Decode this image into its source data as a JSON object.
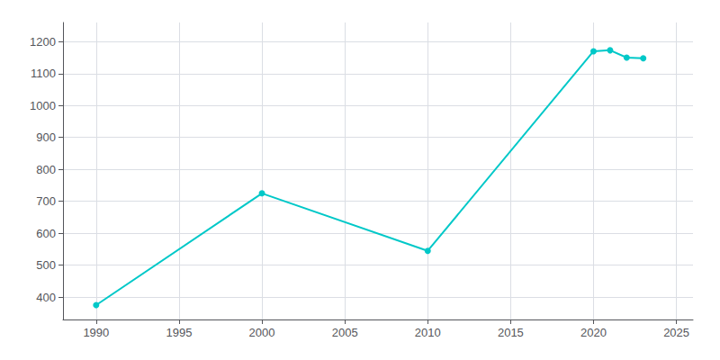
{
  "chart_data": {
    "type": "line",
    "x": [
      1990,
      2000,
      2010,
      2020,
      2021,
      2022,
      2023
    ],
    "values": [
      375,
      725,
      545,
      1170,
      1173,
      1150,
      1148
    ],
    "color": "#00C8C8",
    "marker": "circle",
    "xlim": [
      1988,
      2026
    ],
    "xticks": [
      1990,
      1995,
      2000,
      2005,
      2010,
      2015,
      2020,
      2025
    ],
    "ylim": [
      330,
      1260
    ],
    "yticks": [
      400,
      500,
      600,
      700,
      800,
      900,
      1000,
      1100,
      1200
    ],
    "grid": true
  }
}
